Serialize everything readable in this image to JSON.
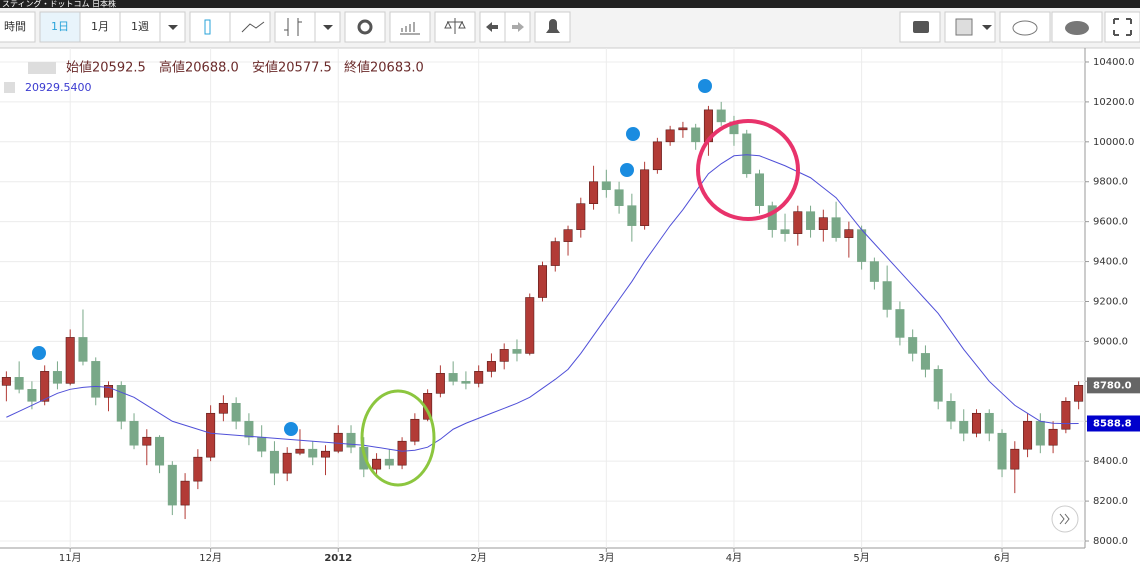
{
  "toolbar": {
    "buttons": [
      "時間",
      "1日",
      "1月",
      "1週"
    ]
  },
  "brand": "スティング・ドットコム 日本株",
  "info": [
    "始値20592.5",
    "高値20688.0",
    "安値20577.5",
    "終値20683.0"
  ],
  "indicator_value": "20929.5400",
  "chart_data": {
    "type": "candlestick",
    "categories": [
      null,
      null,
      null,
      null,
      null,
      "11月",
      null,
      null,
      null,
      null,
      null,
      null,
      null,
      null,
      null,
      null,
      "12月",
      null,
      null,
      null,
      null,
      null,
      null,
      null,
      null,
      null,
      "2012",
      null,
      null,
      null,
      null,
      null,
      null,
      null,
      null,
      null,
      null,
      "2月",
      null,
      null,
      null,
      null,
      null,
      null,
      null,
      null,
      null,
      "3月",
      null,
      null,
      null,
      null,
      null,
      null,
      null,
      null,
      null,
      "4月",
      null,
      null,
      null,
      null,
      null,
      null,
      null,
      null,
      null,
      "5月",
      null,
      null,
      null,
      null,
      null,
      null,
      null,
      null,
      null,
      null,
      "6月",
      null,
      null,
      null,
      null,
      null,
      null
    ],
    "open": [
      8780,
      8820,
      8760,
      8700,
      8850,
      8790,
      9020,
      8900,
      8720,
      8780,
      8600,
      8480,
      8520,
      8380,
      8180,
      8300,
      8420,
      8640,
      8690,
      8600,
      8520,
      8450,
      8340,
      8440,
      8460,
      8420,
      8450,
      8540,
      8470,
      8360,
      8410,
      8380,
      8500,
      8610,
      8740,
      8840,
      8800,
      8790,
      8850,
      8900,
      8960,
      8940,
      9220,
      9380,
      9500,
      9560,
      9690,
      9800,
      9760,
      9680,
      9580,
      9860,
      10000,
      10060,
      10070,
      10000,
      10160,
      10100,
      10040,
      9840,
      9680,
      9560,
      9540,
      9650,
      9560,
      9620,
      9520,
      9560,
      9400,
      9300,
      9160,
      9020,
      8940,
      8860,
      8700,
      8600,
      8540,
      8640,
      8540,
      8360,
      8460,
      8600,
      8480,
      8560,
      8700
    ],
    "high": [
      8850,
      8900,
      8800,
      8880,
      8900,
      9060,
      9160,
      8920,
      8800,
      8800,
      8640,
      8560,
      8530,
      8400,
      8340,
      8460,
      8680,
      8730,
      8720,
      8640,
      8580,
      8500,
      8470,
      8560,
      8500,
      8480,
      8580,
      8580,
      8520,
      8440,
      8460,
      8520,
      8640,
      8760,
      8880,
      8900,
      8850,
      8880,
      8940,
      8990,
      9010,
      9240,
      9400,
      9520,
      9580,
      9720,
      9880,
      9860,
      9800,
      9740,
      9900,
      10020,
      10080,
      10100,
      10090,
      10180,
      10200,
      10130,
      10060,
      9860,
      9700,
      9640,
      9680,
      9680,
      9660,
      9700,
      9600,
      9580,
      9420,
      9380,
      9200,
      9060,
      8980,
      8880,
      8740,
      8660,
      8660,
      8660,
      8560,
      8500,
      8640,
      8640,
      8600,
      8720,
      8800
    ],
    "low": [
      8700,
      8740,
      8660,
      8680,
      8760,
      8780,
      8880,
      8680,
      8650,
      8560,
      8460,
      8380,
      8340,
      8130,
      8110,
      8260,
      8400,
      8600,
      8560,
      8480,
      8420,
      8280,
      8300,
      8430,
      8380,
      8330,
      8440,
      8440,
      8320,
      8330,
      8360,
      8360,
      8480,
      8600,
      8720,
      8780,
      8760,
      8770,
      8820,
      8860,
      8900,
      8930,
      9200,
      9350,
      9430,
      9520,
      9660,
      9720,
      9640,
      9500,
      9560,
      9840,
      9980,
      10020,
      9960,
      9930,
      10080,
      9980,
      9820,
      9640,
      9520,
      9500,
      9480,
      9520,
      9500,
      9500,
      9420,
      9360,
      9260,
      9120,
      8980,
      8900,
      8820,
      8660,
      8560,
      8500,
      8520,
      8500,
      8320,
      8240,
      8420,
      8440,
      8440,
      8540,
      8660
    ],
    "close": [
      8820,
      8760,
      8700,
      8850,
      8790,
      9020,
      8900,
      8720,
      8780,
      8600,
      8480,
      8520,
      8380,
      8180,
      8300,
      8420,
      8640,
      8690,
      8600,
      8520,
      8450,
      8340,
      8440,
      8460,
      8420,
      8450,
      8540,
      8470,
      8360,
      8410,
      8380,
      8500,
      8610,
      8740,
      8840,
      8800,
      8790,
      8850,
      8900,
      8960,
      8940,
      9220,
      9380,
      9500,
      9560,
      9690,
      9800,
      9760,
      9680,
      9580,
      9860,
      10000,
      10060,
      10070,
      10000,
      10160,
      10100,
      10040,
      9840,
      9680,
      9560,
      9540,
      9650,
      9560,
      9620,
      9520,
      9560,
      9400,
      9300,
      9160,
      9020,
      8940,
      8860,
      8700,
      8600,
      8540,
      8640,
      8540,
      8360,
      8460,
      8600,
      8480,
      8560,
      8700,
      8780
    ],
    "up_color": "#b23b36",
    "down_color": "#79a888",
    "ma": {
      "color": "#5050d8",
      "values": [
        8620,
        8650,
        8680,
        8710,
        8740,
        8760,
        8770,
        8775,
        8770,
        8745,
        8720,
        8680,
        8640,
        8600,
        8580,
        8560,
        8540,
        8535,
        8530,
        8525,
        8520,
        8515,
        8510,
        8505,
        8500,
        8495,
        8490,
        8485,
        8480,
        8470,
        8460,
        8450,
        8455,
        8470,
        8510,
        8560,
        8590,
        8615,
        8640,
        8665,
        8690,
        8720,
        8765,
        8810,
        8860,
        8940,
        9030,
        9120,
        9210,
        9300,
        9400,
        9490,
        9580,
        9660,
        9750,
        9840,
        9890,
        9930,
        9935,
        9930,
        9905,
        9880,
        9850,
        9820,
        9770,
        9720,
        9640,
        9560,
        9490,
        9420,
        9350,
        9280,
        9210,
        9140,
        9050,
        8960,
        8880,
        8800,
        8740,
        8680,
        8640,
        8600,
        8590,
        8588,
        8589
      ]
    },
    "ylim": [
      7965,
      10470
    ],
    "yticks": [
      {
        "value": 8000,
        "label": "8000.0"
      },
      {
        "value": 8200,
        "label": "8200.0"
      },
      {
        "value": 8400,
        "label": "8400.0"
      },
      {
        "value": 8600,
        "label": "8600.0"
      },
      {
        "value": 8800,
        "label": "8800.0"
      },
      {
        "value": 9000,
        "label": "9000.0"
      },
      {
        "value": 9200,
        "label": "9200.0"
      },
      {
        "value": 9400,
        "label": "9400.0"
      },
      {
        "value": 9600,
        "label": "9600.0"
      },
      {
        "value": 9800,
        "label": "9800.0"
      },
      {
        "value": 10000,
        "label": "10000.0"
      },
      {
        "value": 10200,
        "label": "10200.0"
      },
      {
        "value": 10400,
        "label": "10400.0"
      }
    ],
    "grid": true,
    "price_tags": [
      {
        "value": 8780,
        "label": "8780.0",
        "color": "#666666"
      },
      {
        "value": 8588.8,
        "label": "8588.8",
        "color": "#0000cc"
      }
    ]
  }
}
